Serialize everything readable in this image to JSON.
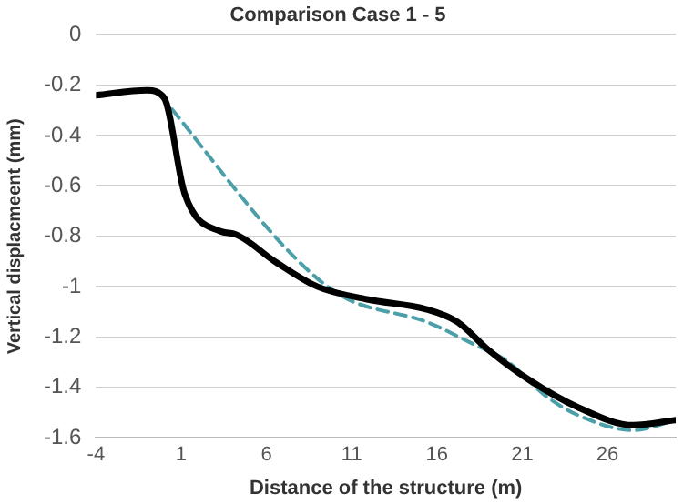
{
  "chart_data": {
    "type": "line",
    "title": "Comparison Case 1 - 5",
    "xlabel": "Distance of the structure (m)",
    "ylabel": "Vertical displacmeent (mm)",
    "xlim": [
      -4,
      30
    ],
    "xticks": [
      -4,
      1,
      6,
      11,
      16,
      21,
      26
    ],
    "ylim": [
      -1.6,
      0
    ],
    "yticks": [
      0,
      -0.2,
      -0.4,
      -0.6,
      -0.8,
      -1,
      -1.2,
      -1.4,
      -1.6
    ],
    "grid": "y",
    "legend": false,
    "marker": "none",
    "series": [
      {
        "color": "#000000",
        "line_style": "solid",
        "x": [
          -4,
          -1,
          0,
          1.2,
          3.3,
          4.1,
          6.5,
          9,
          11.9,
          15.4,
          17.2,
          19,
          21.4,
          24.3,
          27.5,
          30
        ],
        "values": [
          -0.24,
          -0.22,
          -0.25,
          -0.63,
          -0.78,
          -0.79,
          -0.9,
          -1,
          -1.05,
          -1.09,
          -1.14,
          -1.25,
          -1.37,
          -1.48,
          -1.55,
          -1.53
        ]
      },
      {
        "color": "#4a9fa8",
        "line_style": "dashed",
        "x": [
          -0.2,
          7.6,
          10.5,
          15.4,
          18.2,
          20,
          22.5,
          24.6,
          27.5,
          30
        ],
        "values": [
          -0.24,
          -0.88,
          -1.04,
          -1.14,
          -1.23,
          -1.29,
          -1.44,
          -1.52,
          -1.57,
          -1.53
        ]
      }
    ]
  }
}
